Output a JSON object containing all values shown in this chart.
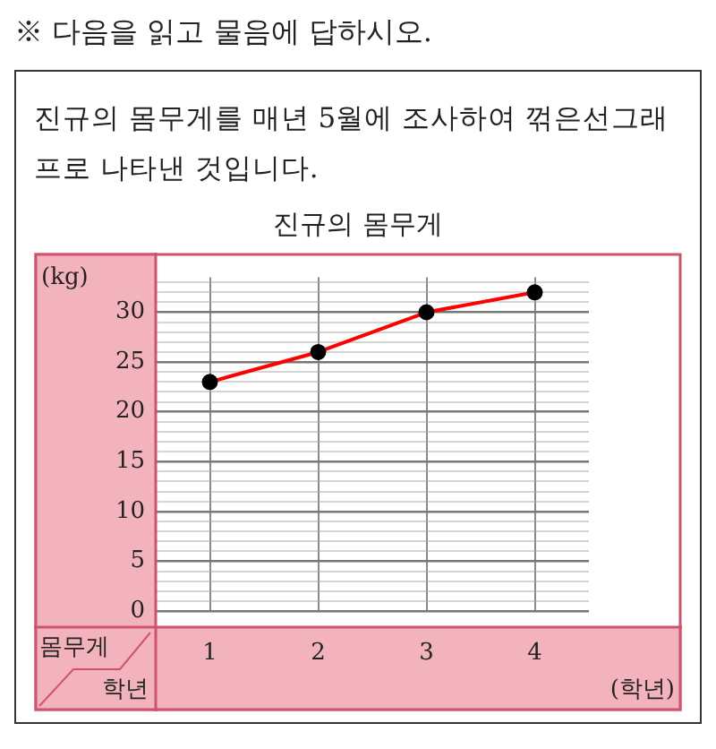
{
  "chart_data": {
    "type": "line",
    "title": "진규의 몸무게",
    "ylabel": "(kg)",
    "xlabel": "(학년)",
    "annotations": [
      "※ 다음을 읽고 물음에 답하시오.",
      "진규의 몸무게를 매년 5월에 조사하여 꺾은선그래프로 나타낸 것입니다.",
      "몸무게",
      "학년"
    ],
    "categories": [
      "1",
      "2",
      "3",
      "4"
    ],
    "series": [
      {
        "color": "#ff0000",
        "values": [
          23,
          26,
          30,
          32
        ]
      }
    ],
    "ylim": [
      0,
      33.5
    ],
    "yticks": [
      0,
      {
        "value": 1,
        "label": null
      },
      {
        "value": 2,
        "label": null
      },
      {
        "value": 3,
        "label": null
      },
      {
        "value": 4,
        "label": null
      },
      5,
      {
        "value": 6,
        "label": null
      },
      {
        "value": 7,
        "label": null
      },
      {
        "value": 8,
        "label": null
      },
      {
        "value": 9,
        "label": null
      },
      10,
      {
        "value": 11,
        "label": null
      },
      {
        "value": 12,
        "label": null
      },
      {
        "value": 13,
        "label": null
      },
      {
        "value": 14,
        "label": null
      },
      15,
      {
        "value": 16,
        "label": null
      },
      {
        "value": 17,
        "label": null
      },
      {
        "value": 18,
        "label": null
      },
      {
        "value": 19,
        "label": null
      },
      20,
      {
        "value": 21,
        "label": null
      },
      {
        "value": 22,
        "label": null
      },
      {
        "value": 23,
        "label": null
      },
      {
        "value": 24,
        "label": null
      },
      25,
      {
        "value": 26,
        "label": null
      },
      {
        "value": 27,
        "label": null
      },
      {
        "value": 28,
        "label": null
      },
      {
        "value": 29,
        "label": null
      },
      30,
      {
        "value": 31,
        "label": null
      },
      {
        "value": 32,
        "label": null
      },
      {
        "value": 33,
        "label": null
      }
    ],
    "grid": true,
    "marker": "circle",
    "line_style": "solid",
    "legend": false
  }
}
